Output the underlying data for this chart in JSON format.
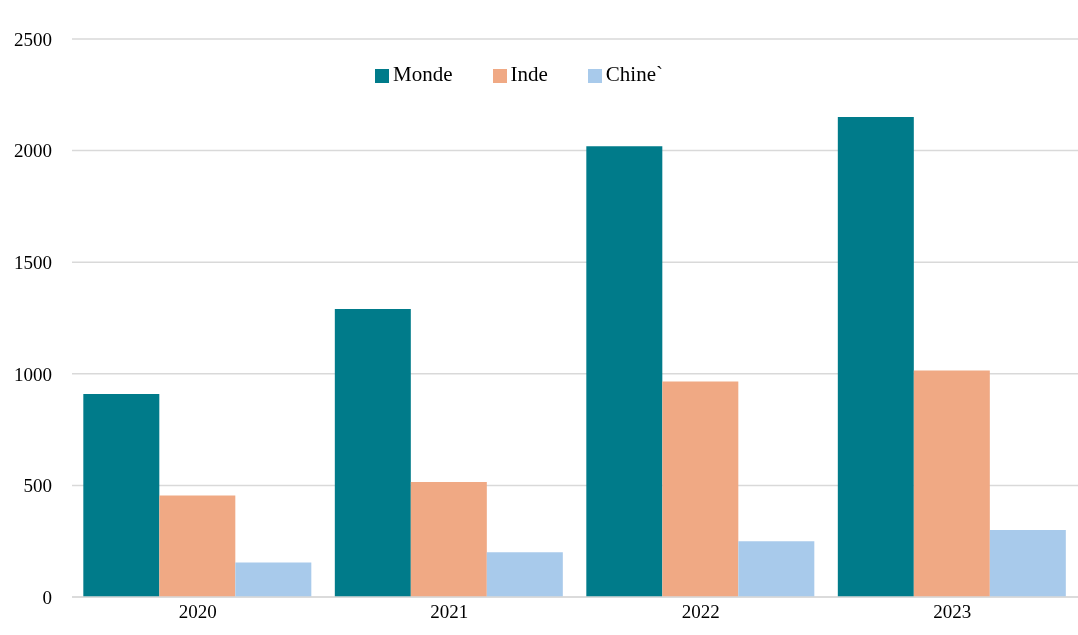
{
  "chart_data": {
    "type": "bar",
    "categories": [
      "2020",
      "2021",
      "2022",
      "2023"
    ],
    "series": [
      {
        "name": "Monde",
        "color": "#007b8a",
        "values": [
          910,
          1290,
          2020,
          2150
        ]
      },
      {
        "name": "Inde",
        "color": "#f0a984",
        "values": [
          455,
          515,
          965,
          1015
        ]
      },
      {
        "name": "Chine`",
        "color": "#a8caeb",
        "values": [
          155,
          200,
          250,
          300
        ]
      }
    ],
    "ylim": [
      0,
      2500
    ],
    "yticks": [
      0,
      500,
      1000,
      1500,
      2000,
      2500
    ],
    "grid": "y",
    "legend": "top"
  }
}
